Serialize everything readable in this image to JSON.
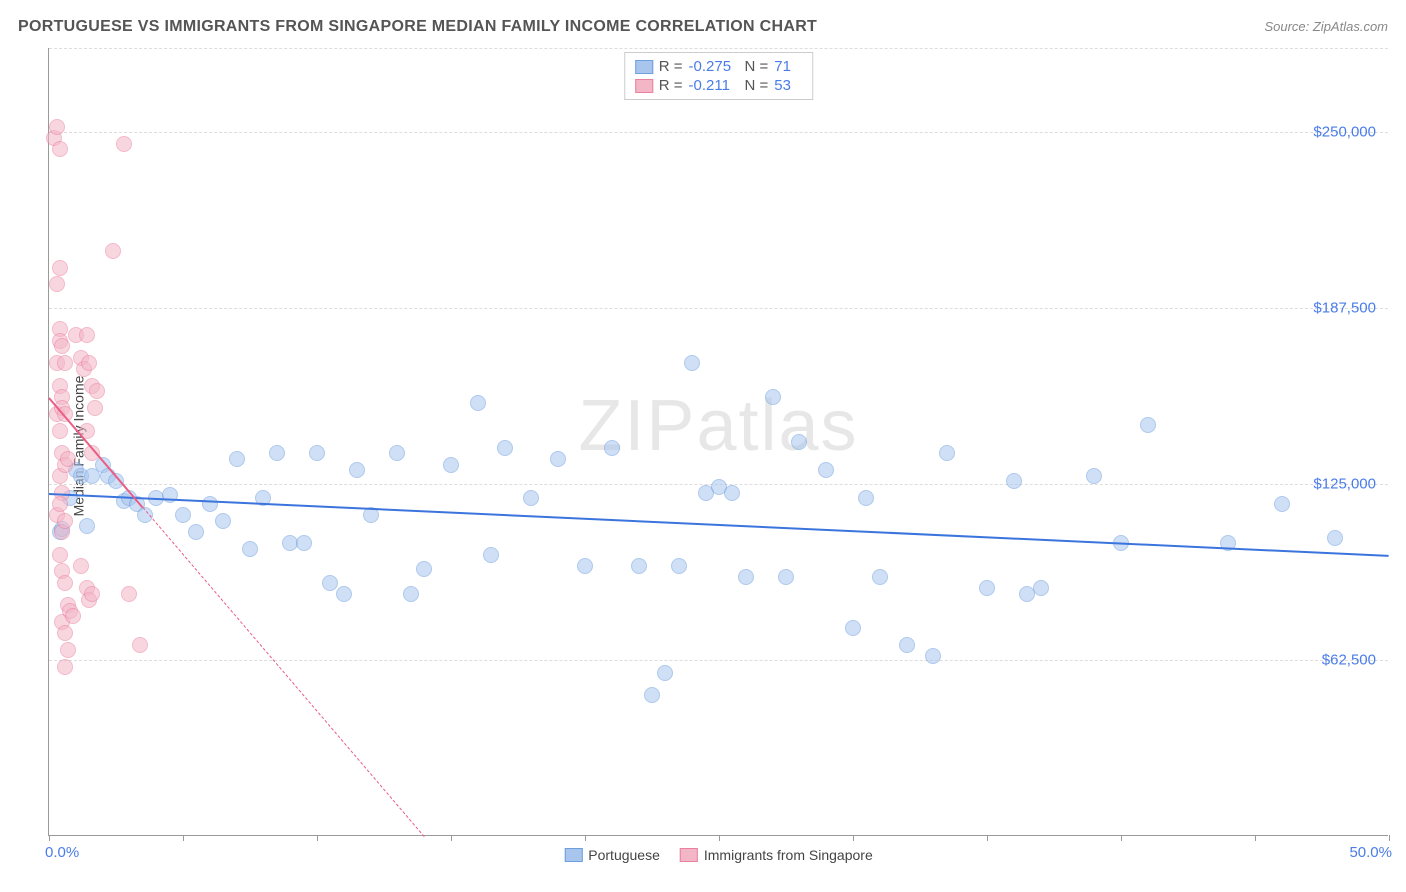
{
  "title": "PORTUGUESE VS IMMIGRANTS FROM SINGAPORE MEDIAN FAMILY INCOME CORRELATION CHART",
  "source_label": "Source: ZipAtlas.com",
  "watermark": {
    "part1": "ZIP",
    "part2": "atlas"
  },
  "ylabel": "Median Family Income",
  "chart": {
    "type": "scatter",
    "xlim": [
      0,
      50
    ],
    "ylim": [
      0,
      280000
    ],
    "background_color": "#ffffff",
    "grid_color": "#dddddd",
    "axis_color": "#999999",
    "label_color": "#4a7ce8",
    "ylabel_fontsize": 14,
    "title_fontsize": 16,
    "marker_radius": 8,
    "marker_opacity": 0.55,
    "yticks": [
      {
        "value": 62500,
        "label": "$62,500"
      },
      {
        "value": 125000,
        "label": "$125,000"
      },
      {
        "value": 187500,
        "label": "$187,500"
      },
      {
        "value": 250000,
        "label": "$250,000"
      }
    ],
    "xticks_at": [
      0,
      5,
      10,
      15,
      20,
      25,
      30,
      35,
      40,
      45,
      50
    ],
    "xaxis_start_label": "0.0%",
    "xaxis_end_label": "50.0%",
    "series": [
      {
        "name": "Portuguese",
        "color_fill": "#a8c5ee",
        "color_stroke": "#6d9ee0",
        "R": "-0.275",
        "N": "71",
        "trend": {
          "x1": 0,
          "y1": 122000,
          "x2": 50,
          "y2": 100000,
          "color": "#3b74dd",
          "width": 2,
          "solid": true
        },
        "points": [
          [
            0.4,
            108000
          ],
          [
            0.5,
            109000
          ],
          [
            0.8,
            120000
          ],
          [
            1.0,
            130000
          ],
          [
            1.2,
            128000
          ],
          [
            1.4,
            110000
          ],
          [
            1.6,
            128000
          ],
          [
            2.0,
            132000
          ],
          [
            2.2,
            128000
          ],
          [
            2.5,
            126000
          ],
          [
            2.8,
            119000
          ],
          [
            3.0,
            120000
          ],
          [
            3.3,
            118000
          ],
          [
            3.6,
            114000
          ],
          [
            4.0,
            120000
          ],
          [
            4.5,
            121000
          ],
          [
            5.0,
            114000
          ],
          [
            5.5,
            108000
          ],
          [
            6.0,
            118000
          ],
          [
            6.5,
            112000
          ],
          [
            7.0,
            134000
          ],
          [
            7.5,
            102000
          ],
          [
            8.0,
            120000
          ],
          [
            8.5,
            136000
          ],
          [
            9.0,
            104000
          ],
          [
            9.5,
            104000
          ],
          [
            10.0,
            136000
          ],
          [
            10.5,
            90000
          ],
          [
            11.0,
            86000
          ],
          [
            11.5,
            130000
          ],
          [
            12.0,
            114000
          ],
          [
            13.0,
            136000
          ],
          [
            13.5,
            86000
          ],
          [
            14.0,
            95000
          ],
          [
            15.0,
            132000
          ],
          [
            16.0,
            154000
          ],
          [
            16.5,
            100000
          ],
          [
            17.0,
            138000
          ],
          [
            18.0,
            120000
          ],
          [
            19.0,
            134000
          ],
          [
            20.0,
            96000
          ],
          [
            21.0,
            138000
          ],
          [
            22.0,
            96000
          ],
          [
            22.5,
            50000
          ],
          [
            23.0,
            58000
          ],
          [
            23.5,
            96000
          ],
          [
            24.0,
            168000
          ],
          [
            24.5,
            122000
          ],
          [
            25.0,
            124000
          ],
          [
            25.5,
            122000
          ],
          [
            26.0,
            92000
          ],
          [
            27.0,
            156000
          ],
          [
            27.5,
            92000
          ],
          [
            28.0,
            140000
          ],
          [
            29.0,
            130000
          ],
          [
            30.0,
            74000
          ],
          [
            30.5,
            120000
          ],
          [
            31.0,
            92000
          ],
          [
            32.0,
            68000
          ],
          [
            33.0,
            64000
          ],
          [
            33.5,
            136000
          ],
          [
            35.0,
            88000
          ],
          [
            36.0,
            126000
          ],
          [
            36.5,
            86000
          ],
          [
            37.0,
            88000
          ],
          [
            39.0,
            128000
          ],
          [
            40.0,
            104000
          ],
          [
            41.0,
            146000
          ],
          [
            44.0,
            104000
          ],
          [
            46.0,
            118000
          ],
          [
            48.0,
            106000
          ]
        ]
      },
      {
        "name": "Immigrants from Singapore",
        "color_fill": "#f3b6c7",
        "color_stroke": "#ea7f9e",
        "R": "-0.211",
        "N": "53",
        "trend": {
          "x1": 0,
          "y1": 156000,
          "x2": 14,
          "y2": 0,
          "color": "#ea5d85",
          "width": 2,
          "solid": false,
          "solid_until_x": 3.5
        },
        "points": [
          [
            0.2,
            248000
          ],
          [
            0.3,
            252000
          ],
          [
            0.4,
            244000
          ],
          [
            0.3,
            196000
          ],
          [
            0.4,
            202000
          ],
          [
            0.4,
            180000
          ],
          [
            0.3,
            168000
          ],
          [
            0.4,
            176000
          ],
          [
            0.5,
            174000
          ],
          [
            0.4,
            160000
          ],
          [
            0.5,
            156000
          ],
          [
            0.6,
            168000
          ],
          [
            0.3,
            150000
          ],
          [
            0.4,
            144000
          ],
          [
            0.5,
            152000
          ],
          [
            0.6,
            150000
          ],
          [
            0.4,
            128000
          ],
          [
            0.5,
            136000
          ],
          [
            0.6,
            132000
          ],
          [
            0.7,
            134000
          ],
          [
            0.5,
            122000
          ],
          [
            0.3,
            114000
          ],
          [
            0.4,
            118000
          ],
          [
            0.5,
            108000
          ],
          [
            0.6,
            112000
          ],
          [
            0.4,
            100000
          ],
          [
            0.5,
            94000
          ],
          [
            0.6,
            90000
          ],
          [
            0.7,
            82000
          ],
          [
            0.5,
            76000
          ],
          [
            0.6,
            72000
          ],
          [
            0.8,
            80000
          ],
          [
            0.9,
            78000
          ],
          [
            0.7,
            66000
          ],
          [
            0.6,
            60000
          ],
          [
            1.0,
            178000
          ],
          [
            1.2,
            170000
          ],
          [
            1.3,
            166000
          ],
          [
            1.4,
            178000
          ],
          [
            1.5,
            168000
          ],
          [
            1.6,
            160000
          ],
          [
            1.7,
            152000
          ],
          [
            1.4,
            144000
          ],
          [
            1.6,
            136000
          ],
          [
            1.8,
            158000
          ],
          [
            1.2,
            96000
          ],
          [
            1.4,
            88000
          ],
          [
            1.5,
            84000
          ],
          [
            1.6,
            86000
          ],
          [
            2.4,
            208000
          ],
          [
            2.8,
            246000
          ],
          [
            3.0,
            86000
          ],
          [
            3.4,
            68000
          ]
        ]
      }
    ],
    "bottom_legend": [
      {
        "label": "Portuguese",
        "fill": "#a8c5ee",
        "stroke": "#6d9ee0"
      },
      {
        "label": "Immigrants from Singapore",
        "fill": "#f3b6c7",
        "stroke": "#ea7f9e"
      }
    ]
  }
}
